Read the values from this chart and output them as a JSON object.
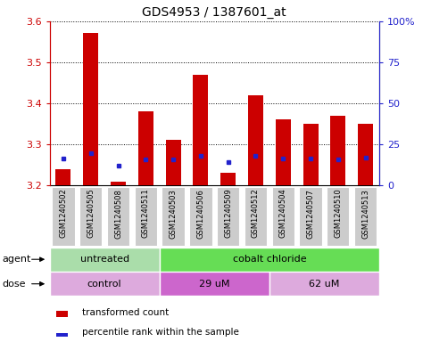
{
  "title": "GDS4953 / 1387601_at",
  "samples": [
    "GSM1240502",
    "GSM1240505",
    "GSM1240508",
    "GSM1240511",
    "GSM1240503",
    "GSM1240506",
    "GSM1240509",
    "GSM1240512",
    "GSM1240504",
    "GSM1240507",
    "GSM1240510",
    "GSM1240513"
  ],
  "bar_bottom": 3.2,
  "bar_tops": [
    3.24,
    3.57,
    3.21,
    3.38,
    3.31,
    3.47,
    3.23,
    3.42,
    3.36,
    3.35,
    3.37,
    3.35
  ],
  "blue_y": [
    3.265,
    3.278,
    3.248,
    3.264,
    3.263,
    3.272,
    3.258,
    3.272,
    3.265,
    3.265,
    3.263,
    3.268
  ],
  "ylim": [
    3.2,
    3.6
  ],
  "yticks_left": [
    3.2,
    3.3,
    3.4,
    3.5,
    3.6
  ],
  "ytick_right_labels": [
    "0",
    "25",
    "50",
    "75",
    "100%"
  ],
  "bar_color": "#cc0000",
  "blue_color": "#2222cc",
  "bg_color": "#cccccc",
  "plot_bg": "#ffffff",
  "agent_groups": [
    {
      "label": "untreated",
      "start": 0,
      "end": 4,
      "color": "#aaddaa"
    },
    {
      "label": "cobalt chloride",
      "start": 4,
      "end": 12,
      "color": "#66dd55"
    }
  ],
  "dose_groups": [
    {
      "label": "control",
      "start": 0,
      "end": 4,
      "color": "#ddaadd"
    },
    {
      "label": "29 uM",
      "start": 4,
      "end": 8,
      "color": "#cc66cc"
    },
    {
      "label": "62 uM",
      "start": 8,
      "end": 12,
      "color": "#ddaadd"
    }
  ],
  "legend_items": [
    {
      "label": "transformed count",
      "color": "#cc0000"
    },
    {
      "label": "percentile rank within the sample",
      "color": "#2222cc"
    }
  ],
  "bar_width": 0.55,
  "left_tick_color": "#cc0000",
  "right_tick_color": "#2222cc",
  "title_fontsize": 10,
  "tick_fontsize": 8,
  "sample_fontsize": 6
}
